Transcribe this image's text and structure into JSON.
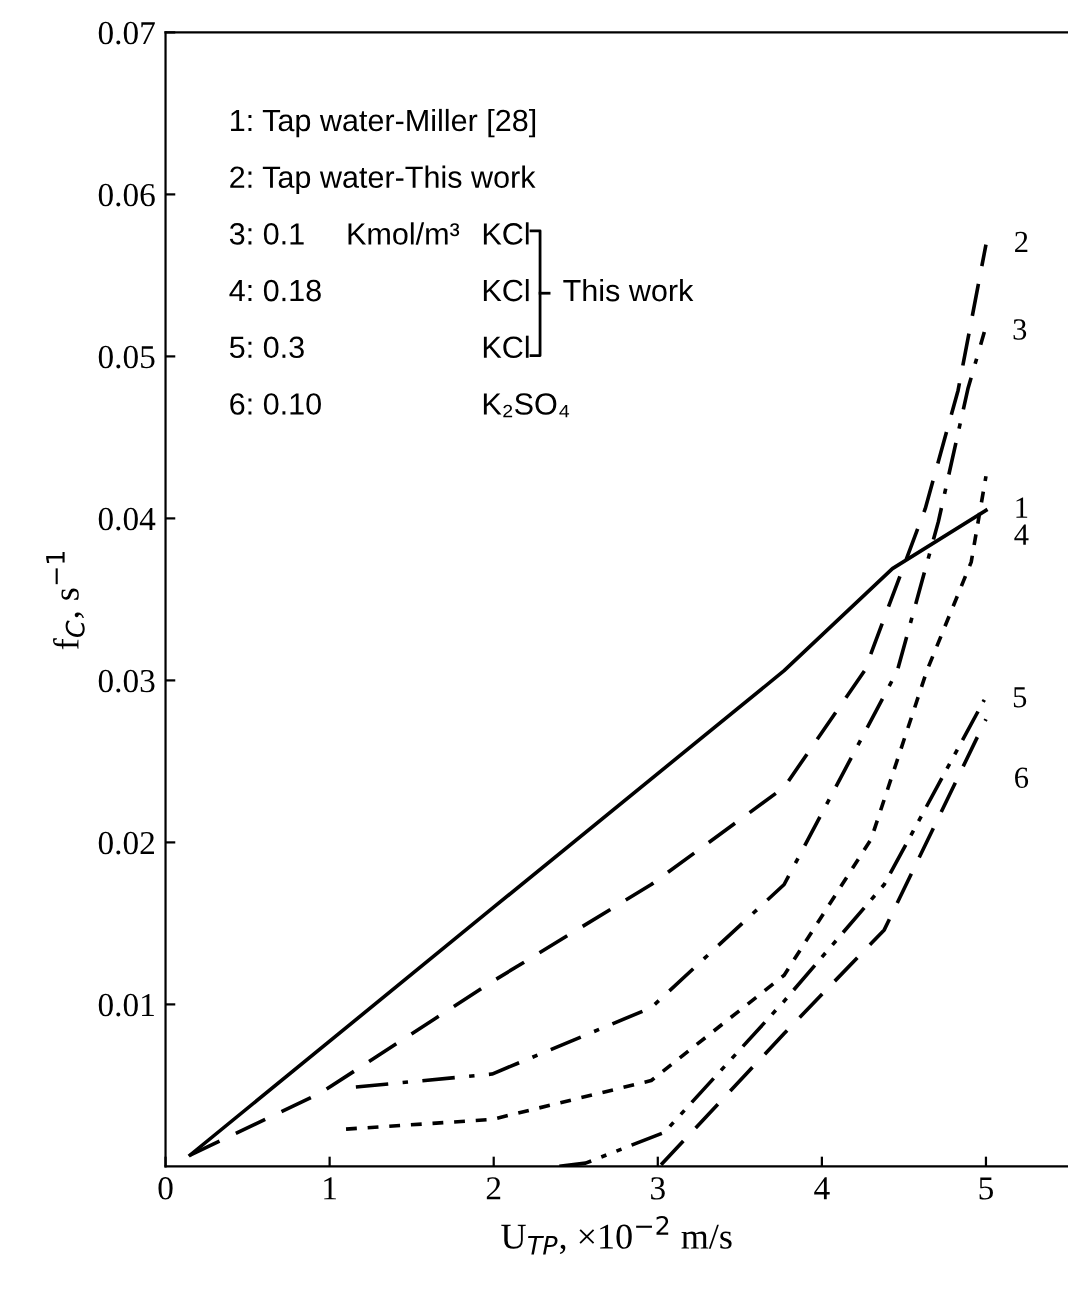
{
  "chart_data": {
    "type": "line",
    "xlabel": "U$_{TP}$, ×10$^{−2}$ m/s",
    "ylabel": "f$_{C}$, s$^{−1}$",
    "xlim": [
      0,
      5.5
    ],
    "ylim": [
      0,
      0.07
    ],
    "xticks": [
      0,
      1,
      2,
      3,
      4,
      5
    ],
    "yticks": [
      0.01,
      0.02,
      0.03,
      0.04,
      0.05,
      0.06,
      0.07
    ],
    "grid": false,
    "legend": false,
    "marker": "none",
    "series": [
      {
        "name": "1",
        "color": "#000000",
        "line_style": "solid",
        "x": [
          0.15,
          2.0,
          3.77,
          4.43,
          5.0
        ],
        "values": [
          0.0007,
          0.016,
          0.0306,
          0.0369,
          0.0405
        ]
      },
      {
        "name": "2",
        "color": "#000000",
        "line_style": "dashed",
        "x": [
          0.15,
          0.94,
          1.99,
          2.96,
          3.77,
          4.26,
          4.63,
          4.83,
          5.0
        ],
        "values": [
          0.0007,
          0.0045,
          0.0114,
          0.0174,
          0.0234,
          0.0306,
          0.0406,
          0.0479,
          0.0569
        ]
      },
      {
        "name": "3",
        "color": "#000000",
        "line_style": "dashdot",
        "x": [
          1.16,
          1.99,
          2.96,
          3.77,
          4.46,
          4.71,
          4.89,
          4.99
        ],
        "values": [
          0.0049,
          0.0057,
          0.0098,
          0.0174,
          0.0306,
          0.0398,
          0.048,
          0.0515
        ]
      },
      {
        "name": "4",
        "color": "#000000",
        "line_style": "dotted",
        "x": [
          1.1,
          1.99,
          2.96,
          3.77,
          4.3,
          4.64,
          4.91,
          5.0
        ],
        "values": [
          0.0023,
          0.0029,
          0.0053,
          0.0118,
          0.0202,
          0.0306,
          0.0373,
          0.0426
        ]
      },
      {
        "name": "5",
        "color": "#000000",
        "line_style": "dashdotdot",
        "x": [
          2.4,
          2.56,
          3.04,
          3.77,
          4.38,
          4.99
        ],
        "values": [
          0.0,
          0.0002,
          0.0021,
          0.0102,
          0.0174,
          0.0288
        ]
      },
      {
        "name": "6",
        "color": "#000000",
        "line_style": "dashed",
        "x": [
          3.02,
          3.77,
          4.38,
          5.0
        ],
        "values": [
          0.0001,
          0.0082,
          0.0146,
          0.0276
        ]
      }
    ],
    "annotations": [
      "1: Tap water-Miller [28]",
      "2: Tap water-This work",
      "3: 0.1",
      "Kmol/m³",
      "KCl",
      "4: 0.18",
      "KCl",
      "5: 0.3",
      "KCl",
      "6: 0.10",
      "K₂SO₄",
      "This work"
    ]
  }
}
